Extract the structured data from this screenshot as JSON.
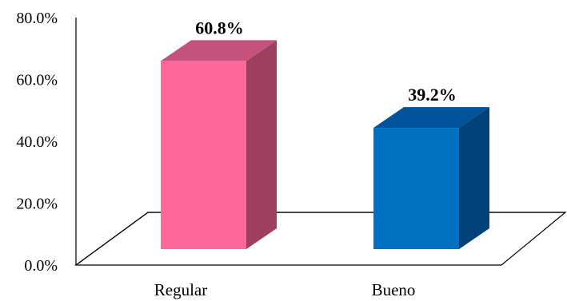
{
  "chart_data": {
    "type": "bar",
    "style": "3d-column",
    "categories": [
      "Regular",
      "Bueno"
    ],
    "values": [
      60.8,
      39.2
    ],
    "data_labels": [
      "60.8%",
      "39.2%"
    ],
    "y_ticks": [
      "0.0%",
      "20.0%",
      "40.0%",
      "60.0%",
      "80.0%"
    ],
    "ylim": [
      0,
      80
    ],
    "grid": false,
    "legend": "none",
    "colors": {
      "Regular": {
        "front": "#FF6699",
        "top": "#C4527A",
        "side": "#9E3F60"
      },
      "Bueno": {
        "front": "#0070C0",
        "top": "#00539A",
        "side": "#004279"
      }
    }
  }
}
